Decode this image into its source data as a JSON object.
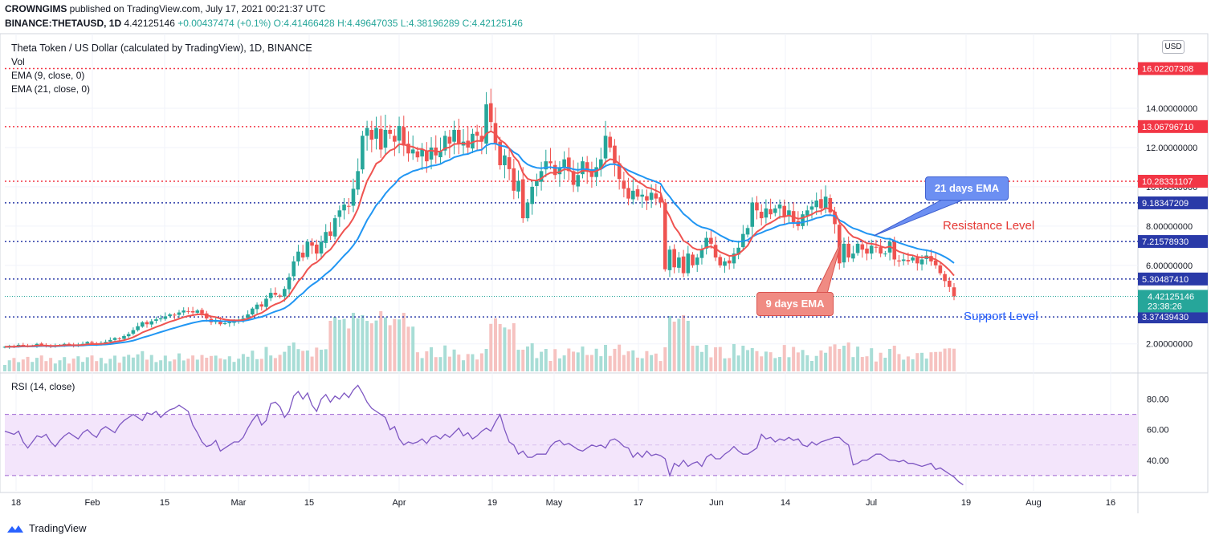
{
  "header": {
    "publisher": "CROWNGIMS",
    "published_text": " published on TradingView.com, July 17, 2021 00:21:37 UTC",
    "symbol": "BINANCE:THETAUSD, 1D",
    "price": "4.42125146",
    "change": "+0.00437474 (+0.1%)",
    "open": "O:4.41466428",
    "high": "H:4.49647035",
    "low": "L:4.38196289",
    "close": "C:4.42125146"
  },
  "legend": {
    "title": "Theta Token / US Dollar (calculated by TradingView), 1D, BINANCE",
    "vol": "Vol",
    "ema9": "EMA (9, close, 0)",
    "ema21": "EMA (21, close, 0)",
    "rsi": "RSI (14, close)"
  },
  "currency_button": "USD",
  "annotations": {
    "ema21_box": "21 days EMA",
    "ema9_box": "9 days EMA",
    "resistance": "Resistance Level",
    "support": "Support Level"
  },
  "brand": "TradingView",
  "chart_data": {
    "type": "candlestick",
    "x_tick_labels": [
      "18",
      "Feb",
      "15",
      "Mar",
      "15",
      "Apr",
      "19",
      "May",
      "17",
      "Jun",
      "14",
      "Jul",
      "19",
      "Aug",
      "16"
    ],
    "y_tick_labels": [
      "14.00000000",
      "12.00000000",
      "10.00000000",
      "8.00000000",
      "6.00000000",
      "2.00000000"
    ],
    "ylim": [
      0.6,
      17.8
    ],
    "horizontal_levels": [
      {
        "value": 16.02207308,
        "label": "16.02207308",
        "color": "#f23645",
        "style": "dotted"
      },
      {
        "value": 13.0679671,
        "label": "13.06796710",
        "color": "#f23645",
        "style": "dotted"
      },
      {
        "value": 10.28331107,
        "label": "10.28331107",
        "color": "#f23645",
        "style": "dotted"
      },
      {
        "value": 9.18347209,
        "label": "9.18347209",
        "color": "#2a3aa8",
        "style": "dotted"
      },
      {
        "value": 7.2157893,
        "label": "7.21578930",
        "color": "#2a3aa8",
        "style": "dotted"
      },
      {
        "value": 5.3048741,
        "label": "5.30487410",
        "color": "#2a3aa8",
        "style": "dotted"
      },
      {
        "value": 3.3743943,
        "label": "3.37439430",
        "color": "#2a3aa8",
        "style": "dotted"
      }
    ],
    "last_price": {
      "value": 4.42125146,
      "label": "4.42125146",
      "countdown": "23:38:26",
      "color": "#26a69a"
    },
    "close_series": [
      1.85,
      1.9,
      1.88,
      1.95,
      1.9,
      1.87,
      1.92,
      2.0,
      1.95,
      1.9,
      1.85,
      1.9,
      1.95,
      2.0,
      1.98,
      1.9,
      1.95,
      2.0,
      2.1,
      2.05,
      2.0,
      2.05,
      2.1,
      2.2,
      2.3,
      2.25,
      2.4,
      2.5,
      2.7,
      2.9,
      3.1,
      3.0,
      3.15,
      3.25,
      3.3,
      3.4,
      3.5,
      3.45,
      3.6,
      3.7,
      3.65,
      3.6,
      3.7,
      3.55,
      3.3,
      3.1,
      3.2,
      3.0,
      3.05,
      3.1,
      3.15,
      3.2,
      3.3,
      3.5,
      3.8,
      4.0,
      3.9,
      4.3,
      4.6,
      4.5,
      4.4,
      4.8,
      5.4,
      6.2,
      6.7,
      6.4,
      7.2,
      7.0,
      6.6,
      7.2,
      7.7,
      7.5,
      8.4,
      8.8,
      9.1,
      9.0,
      9.9,
      10.8,
      12.6,
      13.0,
      12.4,
      13.0,
      11.9,
      12.9,
      12.7,
      12.3,
      13.1,
      12.1,
      11.7,
      11.9,
      11.5,
      11.9,
      11.3,
      12.0,
      11.6,
      11.8,
      12.6,
      12.2,
      12.9,
      12.2,
      12.3,
      12.0,
      12.7,
      12.6,
      12.3,
      14.2,
      13.3,
      12.2,
      11.1,
      11.6,
      10.9,
      9.8,
      10.3,
      8.4,
      9.2,
      10.0,
      10.3,
      10.8,
      11.3,
      11.2,
      10.6,
      11.0,
      11.4,
      10.8,
      10.1,
      10.6,
      11.3,
      10.8,
      10.5,
      11.0,
      11.4,
      12.6,
      12.0,
      11.2,
      10.4,
      9.9,
      9.4,
      9.8,
      9.5,
      9.6,
      9.3,
      9.7,
      9.4,
      9.2,
      5.8,
      6.8,
      5.9,
      6.4,
      5.6,
      6.6,
      6.0,
      6.4,
      6.8,
      7.4,
      7.1,
      6.4,
      6.0,
      6.2,
      6.1,
      6.6,
      6.9,
      7.6,
      7.9,
      9.2,
      8.8,
      8.4,
      8.9,
      8.6,
      8.9,
      9.1,
      8.5,
      8.8,
      8.2,
      8.0,
      8.6,
      8.8,
      9.0,
      9.3,
      8.9,
      9.5,
      8.7,
      8.1,
      6.1,
      7.1,
      6.4,
      6.6,
      7.1,
      6.8,
      6.6,
      7.0,
      6.9,
      6.6,
      6.6,
      7.2,
      6.3,
      6.2,
      6.3,
      6.2,
      6.4,
      6.1,
      6.3,
      6.5,
      6.2,
      6.0,
      5.6,
      5.2,
      4.9,
      4.42
    ],
    "ema9_series": [
      1.85,
      1.86,
      1.86,
      1.88,
      1.89,
      1.88,
      1.89,
      1.91,
      1.92,
      1.91,
      1.9,
      1.9,
      1.91,
      1.93,
      1.94,
      1.93,
      1.93,
      1.95,
      1.98,
      1.99,
      1.99,
      2.0,
      2.02,
      2.06,
      2.11,
      2.14,
      2.19,
      2.25,
      2.34,
      2.45,
      2.58,
      2.67,
      2.76,
      2.86,
      2.94,
      3.04,
      3.13,
      3.2,
      3.28,
      3.36,
      3.42,
      3.46,
      3.5,
      3.51,
      3.47,
      3.4,
      3.36,
      3.29,
      3.24,
      3.21,
      3.2,
      3.2,
      3.22,
      3.28,
      3.38,
      3.5,
      3.58,
      3.73,
      3.9,
      4.02,
      4.1,
      4.24,
      4.47,
      4.82,
      5.19,
      5.43,
      5.79,
      6.03,
      6.15,
      6.36,
      6.63,
      6.8,
      7.12,
      7.46,
      7.79,
      8.03,
      8.4,
      8.88,
      9.63,
      10.3,
      10.72,
      11.18,
      11.32,
      11.63,
      11.85,
      11.94,
      12.17,
      12.16,
      12.07,
      12.04,
      11.93,
      11.93,
      11.81,
      11.85,
      11.8,
      11.8,
      11.96,
      12.01,
      12.18,
      12.19,
      12.21,
      12.17,
      12.27,
      12.34,
      12.33,
      12.71,
      12.83,
      12.71,
      12.39,
      12.23,
      11.97,
      11.54,
      11.29,
      10.71,
      10.41,
      10.33,
      10.32,
      10.42,
      10.6,
      10.72,
      10.7,
      10.76,
      10.89,
      10.87,
      10.72,
      10.7,
      10.82,
      10.81,
      10.75,
      10.8,
      10.92,
      11.26,
      11.41,
      11.37,
      11.18,
      10.93,
      10.63,
      10.46,
      10.27,
      10.14,
      9.97,
      9.92,
      9.81,
      9.69,
      8.91,
      8.49,
      7.97,
      7.66,
      7.25,
      7.12,
      6.9,
      6.8,
      6.8,
      6.92,
      6.96,
      6.85,
      6.68,
      6.58,
      6.48,
      6.5,
      6.58,
      6.78,
      7.0,
      7.44,
      7.71,
      7.85,
      8.06,
      8.17,
      8.31,
      8.47,
      8.48,
      8.54,
      8.47,
      8.37,
      8.42,
      8.5,
      8.6,
      8.74,
      8.77,
      8.92,
      8.88,
      8.72,
      8.2,
      7.98,
      7.66,
      7.45,
      7.38,
      7.26,
      7.13,
      7.1,
      7.06,
      6.97,
      6.9,
      6.96,
      6.83,
      6.7,
      6.62,
      6.54,
      6.51,
      6.43,
      6.4,
      6.42,
      6.38,
      6.3,
      6.16,
      5.97,
      5.75,
      5.48
    ],
    "ema21_series": [
      1.85,
      1.85,
      1.85,
      1.86,
      1.87,
      1.87,
      1.87,
      1.88,
      1.89,
      1.89,
      1.88,
      1.88,
      1.89,
      1.9,
      1.91,
      1.91,
      1.91,
      1.92,
      1.94,
      1.95,
      1.95,
      1.96,
      1.97,
      1.99,
      2.02,
      2.05,
      2.08,
      2.12,
      2.17,
      2.24,
      2.32,
      2.38,
      2.45,
      2.53,
      2.6,
      2.67,
      2.75,
      2.81,
      2.88,
      2.95,
      3.01,
      3.07,
      3.12,
      3.17,
      3.18,
      3.17,
      3.18,
      3.16,
      3.15,
      3.15,
      3.15,
      3.16,
      3.17,
      3.21,
      3.26,
      3.33,
      3.38,
      3.46,
      3.56,
      3.65,
      3.72,
      3.82,
      3.97,
      4.17,
      4.4,
      4.58,
      4.82,
      5.01,
      5.16,
      5.35,
      5.56,
      5.74,
      5.98,
      6.24,
      6.5,
      6.73,
      7.02,
      7.36,
      7.83,
      8.3,
      8.67,
      9.06,
      9.32,
      9.65,
      9.92,
      10.14,
      10.42,
      10.58,
      10.68,
      10.8,
      10.86,
      10.95,
      10.98,
      11.07,
      11.1,
      11.16,
      11.29,
      11.37,
      11.51,
      11.57,
      11.64,
      11.67,
      11.77,
      11.85,
      11.89,
      12.1,
      12.2,
      12.2,
      12.1,
      12.06,
      11.96,
      11.76,
      11.63,
      11.33,
      11.14,
      11.04,
      10.97,
      10.95,
      10.98,
      11.0,
      10.96,
      10.96,
      10.99,
      10.97,
      10.89,
      10.86,
      10.9,
      10.89,
      10.85,
      10.86,
      10.9,
      11.06,
      11.15,
      11.15,
      11.08,
      10.97,
      10.83,
      10.73,
      10.62,
      10.53,
      10.42,
      10.35,
      10.26,
      10.16,
      9.77,
      9.5,
      9.17,
      8.92,
      8.62,
      8.44,
      8.22,
      8.05,
      7.94,
      7.89,
      7.81,
      7.68,
      7.53,
      7.41,
      7.29,
      7.23,
      7.2,
      7.23,
      7.29,
      7.46,
      7.58,
      7.66,
      7.77,
      7.84,
      7.94,
      8.04,
      8.08,
      8.15,
      8.16,
      8.15,
      8.2,
      8.25,
      8.32,
      8.41,
      8.45,
      8.55,
      8.56,
      8.52,
      8.3,
      8.19,
      8.02,
      7.89,
      7.82,
      7.72,
      7.62,
      7.57,
      7.51,
      7.43,
      7.36,
      7.35,
      7.25,
      7.15,
      7.07,
      6.99,
      6.93,
      6.85,
      6.8,
      6.77,
      6.72,
      6.65,
      6.55,
      6.43,
      6.29,
      6.12
    ],
    "rsi_series": [
      59,
      58,
      57,
      59,
      52,
      48,
      52,
      56,
      55,
      57,
      52,
      49,
      53,
      56,
      58,
      56,
      54,
      58,
      60,
      57,
      55,
      60,
      62,
      60,
      58,
      63,
      66,
      68,
      70,
      68,
      66,
      71,
      70,
      72,
      68,
      71,
      73,
      74,
      76,
      74,
      72,
      63,
      58,
      52,
      49,
      50,
      53,
      46,
      48,
      50,
      52,
      52,
      55,
      61,
      66,
      70,
      63,
      66,
      77,
      78,
      75,
      68,
      72,
      82,
      85,
      80,
      84,
      76,
      72,
      80,
      83,
      78,
      82,
      80,
      84,
      81,
      86,
      89,
      84,
      78,
      74,
      72,
      70,
      68,
      60,
      62,
      54,
      50,
      52,
      51,
      52,
      54,
      51,
      55,
      56,
      54,
      57,
      55,
      58,
      61,
      56,
      58,
      54,
      56,
      59,
      61,
      59,
      65,
      70,
      60,
      52,
      50,
      44,
      46,
      42,
      42,
      44,
      44,
      44,
      49,
      52,
      53,
      50,
      51,
      49,
      47,
      46,
      48,
      50,
      49,
      50,
      48,
      53,
      54,
      52,
      49,
      48,
      42,
      45,
      42,
      46,
      43,
      44,
      43,
      41,
      30,
      38,
      36,
      40,
      36,
      38,
      39,
      36,
      42,
      44,
      41,
      41,
      44,
      46,
      49,
      46,
      44,
      44,
      46,
      48,
      57,
      54,
      55,
      52,
      54,
      53,
      55,
      53,
      54,
      50,
      49,
      52,
      50,
      52,
      53,
      54,
      55,
      55,
      52,
      50,
      37,
      38,
      40,
      40,
      42,
      44,
      44,
      42,
      40,
      40,
      39,
      40,
      38,
      38,
      37,
      36,
      37,
      38,
      34,
      35,
      33,
      31,
      29,
      26,
      24
    ],
    "rsi_ylim": [
      20,
      95
    ],
    "rsi_ticks": [
      "80.00",
      "60.00",
      "40.00"
    ],
    "rsi_band": [
      30,
      70
    ],
    "colors": {
      "up": "#26a69a",
      "down": "#ef5350",
      "ema9": "#ef5350",
      "ema21": "#2196f3",
      "rsi": "#7e57c2",
      "rsi_band": "#f3e5fb"
    }
  }
}
